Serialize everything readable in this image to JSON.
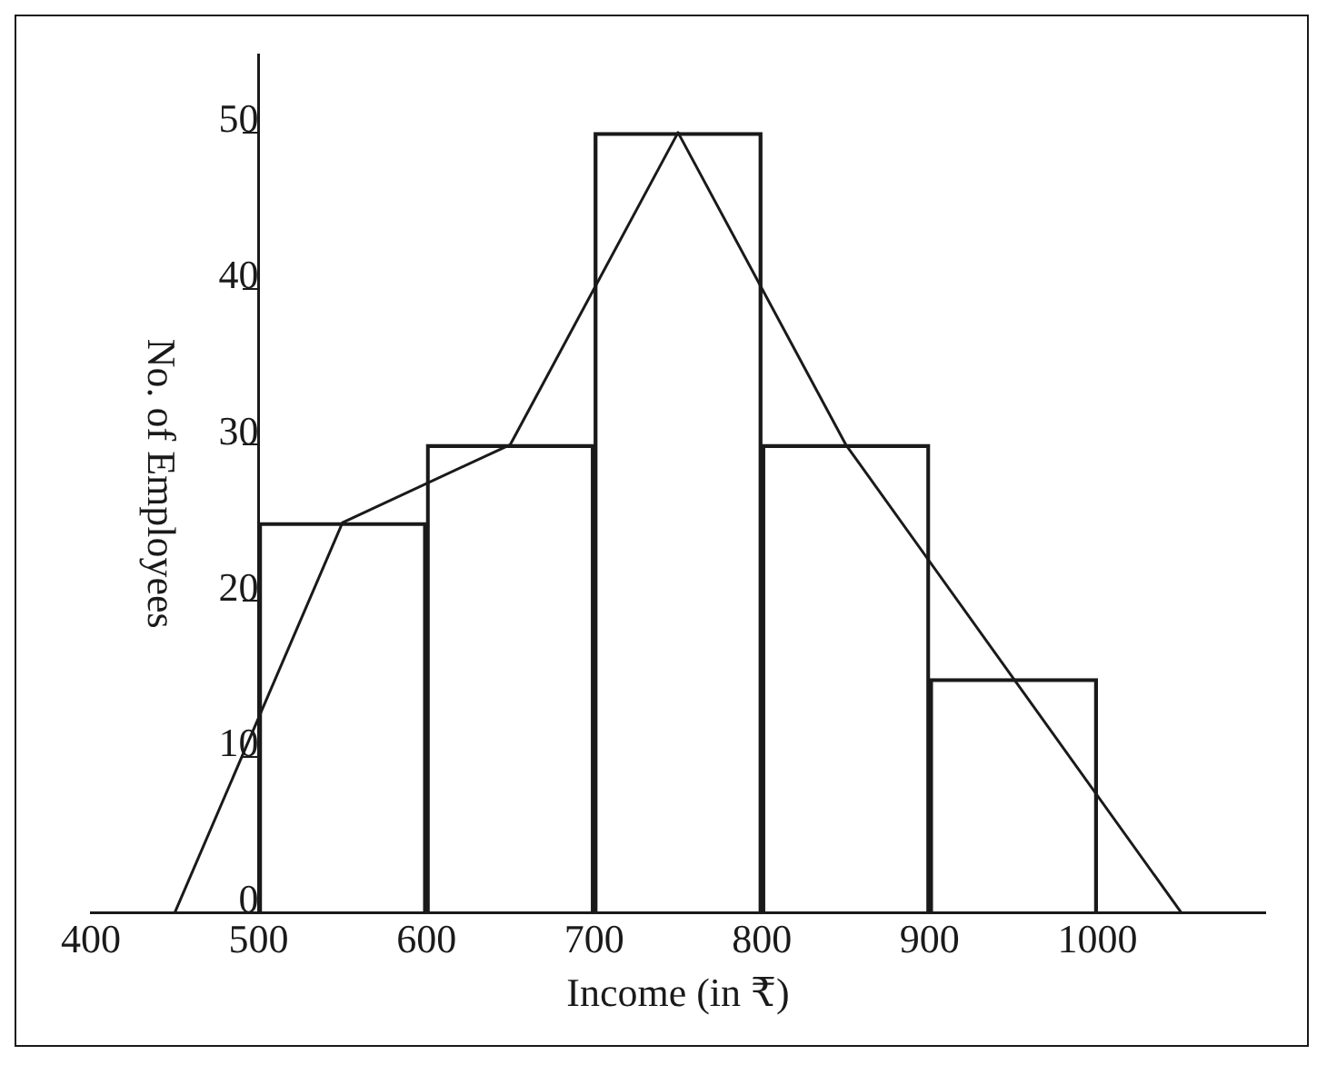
{
  "chart_data": {
    "type": "histogram",
    "xlabel": "Income (in ₹)",
    "ylabel": "No. of Employees",
    "bins": [
      500,
      600,
      700,
      800,
      900,
      1000
    ],
    "values": [
      25,
      30,
      50,
      30,
      15
    ],
    "color": "#1a1a1a",
    "series": [
      {
        "type": "line",
        "x": [
          450,
          550,
          650,
          750,
          850,
          950,
          1050
        ],
        "values": [
          0,
          25,
          30,
          50,
          30,
          15,
          0
        ],
        "color": "#1a1a1a"
      }
    ],
    "xlim": [
      400,
      1100
    ],
    "xticks": [
      400,
      500,
      600,
      700,
      800,
      900,
      1000
    ],
    "ylim": [
      0,
      55
    ],
    "yticks": [
      0,
      10,
      20,
      30,
      40,
      50
    ],
    "grid": false,
    "legend": false,
    "marker": "none",
    "line_style": "solid"
  }
}
